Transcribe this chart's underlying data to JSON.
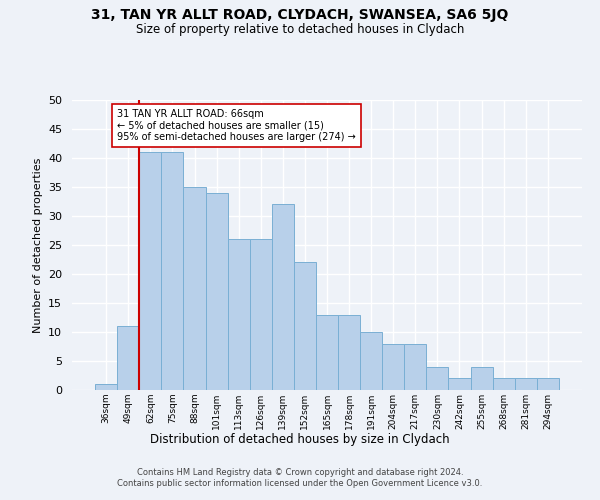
{
  "title": "31, TAN YR ALLT ROAD, CLYDACH, SWANSEA, SA6 5JQ",
  "subtitle": "Size of property relative to detached houses in Clydach",
  "xlabel": "Distribution of detached houses by size in Clydach",
  "ylabel": "Number of detached properties",
  "categories": [
    "36sqm",
    "49sqm",
    "62sqm",
    "75sqm",
    "88sqm",
    "101sqm",
    "113sqm",
    "126sqm",
    "139sqm",
    "152sqm",
    "165sqm",
    "178sqm",
    "191sqm",
    "204sqm",
    "217sqm",
    "230sqm",
    "242sqm",
    "255sqm",
    "268sqm",
    "281sqm",
    "294sqm"
  ],
  "values": [
    1,
    11,
    41,
    41,
    35,
    34,
    26,
    26,
    32,
    22,
    13,
    13,
    10,
    8,
    8,
    4,
    2,
    4,
    2,
    2,
    2
  ],
  "bar_color": "#b8d0ea",
  "bar_edgecolor": "#7aafd4",
  "vline_color": "#cc0000",
  "annotation_text": "31 TAN YR ALLT ROAD: 66sqm\n← 5% of detached houses are smaller (15)\n95% of semi-detached houses are larger (274) →",
  "annotation_box_color": "#ffffff",
  "annotation_box_edgecolor": "#cc0000",
  "ylim": [
    0,
    50
  ],
  "yticks": [
    0,
    5,
    10,
    15,
    20,
    25,
    30,
    35,
    40,
    45,
    50
  ],
  "background_color": "#eef2f8",
  "grid_color": "#ffffff",
  "footer_line1": "Contains HM Land Registry data © Crown copyright and database right 2024.",
  "footer_line2": "Contains public sector information licensed under the Open Government Licence v3.0."
}
